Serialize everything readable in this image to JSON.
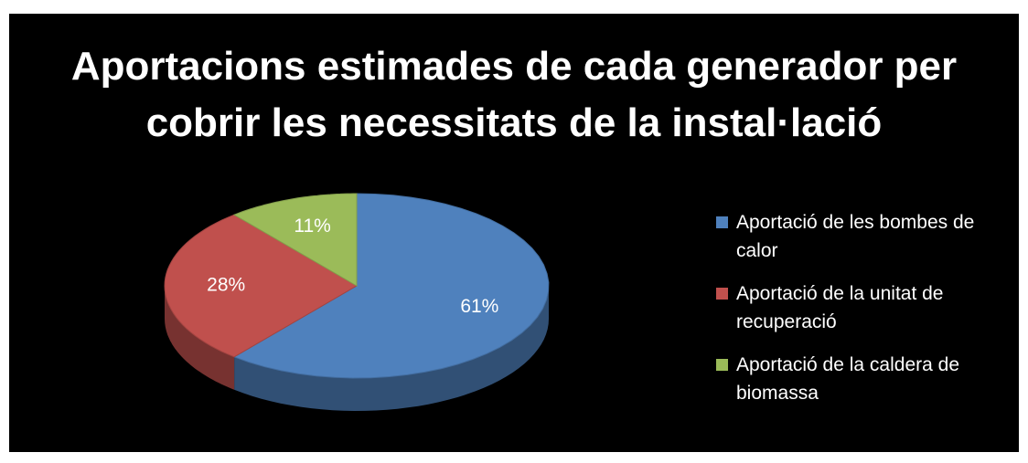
{
  "chart_data": {
    "type": "pie",
    "title": "Aportacions estimades de cada generador per cobrir les necessitats de la instal·lació",
    "categories": [
      "Aportació de les bombes de calor",
      "Aportació de la unitat de recuperació",
      "Aportació de la caldera de biomassa"
    ],
    "values": [
      61,
      28,
      11
    ],
    "value_labels": [
      "61%",
      "28%",
      "11%"
    ],
    "colors": [
      "#4f81bd",
      "#c0504d",
      "#9bbb59"
    ],
    "legend": "right"
  }
}
